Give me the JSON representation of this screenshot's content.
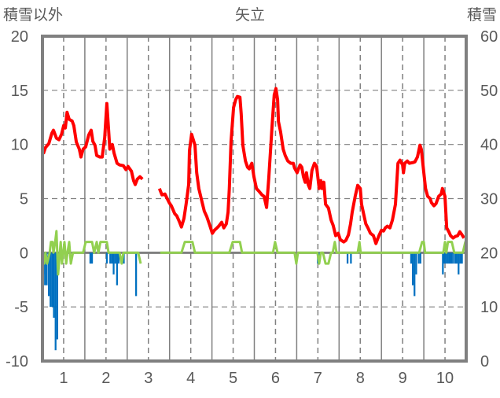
{
  "chart_data": {
    "type": "line",
    "title": "矢立",
    "ylabel_left": "積雪以外",
    "ylabel_right": "積雪",
    "xlabel": "",
    "xlim": [
      0.5,
      10.5
    ],
    "ylim_left": [
      -10,
      20
    ],
    "ylim_right": [
      0,
      60
    ],
    "xticks": [
      "1",
      "2",
      "3",
      "4",
      "5",
      "6",
      "7",
      "8",
      "9",
      "10"
    ],
    "yticks_left": [
      "20",
      "15",
      "10",
      "5",
      "0",
      "-5",
      "-10"
    ],
    "yticks_right": [
      "60",
      "50",
      "40",
      "30",
      "20",
      "10",
      "0"
    ],
    "grid": true,
    "colors": {
      "temperature": "#ff0000",
      "precip": "#0070c0",
      "wind": "#92d050",
      "snow": "#7030a0",
      "axis": "#808080"
    },
    "series": [
      {
        "name": "red-line",
        "axis": "left",
        "points": [
          [
            0.52,
            9.13
          ],
          [
            0.57,
            9.71
          ],
          [
            0.65,
            10.08
          ],
          [
            0.72,
            11.02
          ],
          [
            0.76,
            11.31
          ],
          [
            0.83,
            10.58
          ],
          [
            0.89,
            10.43
          ],
          [
            0.95,
            10.94
          ],
          [
            1.0,
            11.74
          ],
          [
            1.04,
            11.52
          ],
          [
            1.08,
            12.97
          ],
          [
            1.13,
            12.32
          ],
          [
            1.2,
            12.18
          ],
          [
            1.24,
            11.74
          ],
          [
            1.3,
            10.22
          ],
          [
            1.37,
            9.57
          ],
          [
            1.41,
            8.84
          ],
          [
            1.46,
            9.57
          ],
          [
            1.52,
            9.78
          ],
          [
            1.59,
            10.87
          ],
          [
            1.65,
            11.31
          ],
          [
            1.69,
            10.29
          ],
          [
            1.74,
            9.93
          ],
          [
            1.78,
            8.98
          ],
          [
            1.85,
            8.84
          ],
          [
            1.91,
            8.84
          ],
          [
            1.97,
            10.65
          ],
          [
            2.02,
            13.78
          ],
          [
            2.06,
            11.38
          ],
          [
            2.09,
            9.57
          ],
          [
            2.15,
            10.0
          ],
          [
            2.19,
            9.2
          ],
          [
            2.26,
            8.26
          ],
          [
            2.32,
            8.11
          ],
          [
            2.41,
            8.04
          ],
          [
            2.47,
            7.68
          ],
          [
            2.52,
            7.97
          ],
          [
            2.6,
            7.53
          ],
          [
            2.65,
            6.66
          ],
          [
            2.69,
            6.3
          ],
          [
            2.74,
            6.8
          ],
          [
            2.8,
            7.02
          ],
          [
            2.86,
            6.8
          ],
          null,
          [
            3.26,
            5.93
          ],
          [
            3.32,
            5.35
          ],
          [
            3.39,
            5.42
          ],
          [
            3.49,
            4.63
          ],
          [
            3.54,
            4.34
          ],
          [
            3.62,
            3.61
          ],
          [
            3.67,
            3.4
          ],
          [
            3.73,
            2.88
          ],
          [
            3.78,
            2.38
          ],
          [
            3.84,
            3.17
          ],
          [
            3.89,
            4.48
          ],
          [
            3.95,
            6.3
          ],
          [
            3.97,
            9.42
          ],
          [
            4.02,
            10.94
          ],
          [
            4.1,
            9.93
          ],
          [
            4.14,
            7.39
          ],
          [
            4.19,
            5.93
          ],
          [
            4.27,
            4.63
          ],
          [
            4.32,
            3.83
          ],
          [
            4.38,
            3.32
          ],
          [
            4.45,
            2.52
          ],
          [
            4.51,
            1.8
          ],
          [
            4.56,
            2.08
          ],
          [
            4.62,
            2.3
          ],
          [
            4.66,
            2.45
          ],
          [
            4.73,
            2.81
          ],
          [
            4.78,
            2.3
          ],
          [
            4.84,
            2.67
          ],
          [
            4.88,
            3.75
          ],
          [
            4.91,
            5.93
          ],
          [
            4.95,
            10.29
          ],
          [
            5.01,
            13.41
          ],
          [
            5.06,
            14.14
          ],
          [
            5.1,
            14.43
          ],
          [
            5.16,
            14.36
          ],
          [
            5.19,
            12.83
          ],
          [
            5.23,
            9.93
          ],
          [
            5.29,
            8.47
          ],
          [
            5.34,
            7.89
          ],
          [
            5.38,
            7.75
          ],
          [
            5.44,
            8.26
          ],
          [
            5.49,
            7.02
          ],
          [
            5.55,
            5.93
          ],
          [
            5.6,
            5.72
          ],
          [
            5.68,
            5.35
          ],
          [
            5.73,
            5.21
          ],
          [
            5.79,
            4.19
          ],
          [
            5.84,
            6.8
          ],
          [
            5.92,
            11.74
          ],
          [
            5.97,
            14.58
          ],
          [
            6.01,
            15.16
          ],
          [
            6.05,
            14.14
          ],
          [
            6.07,
            12.11
          ],
          [
            6.12,
            11.16
          ],
          [
            6.18,
            9.57
          ],
          [
            6.23,
            8.98
          ],
          [
            6.29,
            8.47
          ],
          [
            6.36,
            8.26
          ],
          [
            6.42,
            8.26
          ],
          [
            6.45,
            7.82
          ],
          [
            6.51,
            7.39
          ],
          [
            6.55,
            7.82
          ],
          [
            6.58,
            8.11
          ],
          [
            6.62,
            7.89
          ],
          [
            6.66,
            7.02
          ],
          [
            6.7,
            6.51
          ],
          [
            6.73,
            7.39
          ],
          [
            6.77,
            6.3
          ],
          [
            6.81,
            5.93
          ],
          [
            6.86,
            7.6
          ],
          [
            6.92,
            8.26
          ],
          [
            6.97,
            7.97
          ],
          [
            7.03,
            5.93
          ],
          [
            7.07,
            6.66
          ],
          [
            7.1,
            5.93
          ],
          [
            7.14,
            6.51
          ],
          [
            7.18,
            4.48
          ],
          [
            7.25,
            4.12
          ],
          [
            7.31,
            3.03
          ],
          [
            7.36,
            2.52
          ],
          [
            7.42,
            1.58
          ],
          [
            7.48,
            1.8
          ],
          [
            7.53,
            1.21
          ],
          [
            7.61,
            1.0
          ],
          [
            7.66,
            1.14
          ],
          [
            7.72,
            1.65
          ],
          [
            7.77,
            2.67
          ],
          [
            7.81,
            3.75
          ],
          [
            7.88,
            5.21
          ],
          [
            7.94,
            6.22
          ],
          [
            8.0,
            5.93
          ],
          [
            8.03,
            4.48
          ],
          [
            8.09,
            3.4
          ],
          [
            8.13,
            2.67
          ],
          [
            8.18,
            2.3
          ],
          [
            8.24,
            1.8
          ],
          [
            8.31,
            1.58
          ],
          [
            8.37,
            0.85
          ],
          [
            8.44,
            1.58
          ],
          [
            8.5,
            2.08
          ],
          [
            8.55,
            2.01
          ],
          [
            8.59,
            2.3
          ],
          [
            8.64,
            2.45
          ],
          [
            8.7,
            2.3
          ],
          [
            8.76,
            3.03
          ],
          [
            8.83,
            4.48
          ],
          [
            8.89,
            8.26
          ],
          [
            8.94,
            8.55
          ],
          [
            9.0,
            8.11
          ],
          [
            9.02,
            7.39
          ],
          [
            9.05,
            8.26
          ],
          [
            9.11,
            8.47
          ],
          [
            9.16,
            8.26
          ],
          [
            9.24,
            8.33
          ],
          [
            9.29,
            8.4
          ],
          [
            9.35,
            8.84
          ],
          [
            9.41,
            9.93
          ],
          [
            9.44,
            9.57
          ],
          [
            9.5,
            7.39
          ],
          [
            9.54,
            5.93
          ],
          [
            9.59,
            5.21
          ],
          [
            9.65,
            4.99
          ],
          [
            9.68,
            4.63
          ],
          [
            9.74,
            4.34
          ],
          [
            9.79,
            4.55
          ],
          [
            9.85,
            5.21
          ],
          [
            9.91,
            5.42
          ],
          [
            9.94,
            5.93
          ],
          [
            10.0,
            5.21
          ],
          [
            10.04,
            2.3
          ],
          [
            10.09,
            1.94
          ],
          [
            10.13,
            1.58
          ],
          [
            10.19,
            1.36
          ],
          [
            10.24,
            1.5
          ],
          [
            10.3,
            1.58
          ],
          [
            10.35,
            1.94
          ],
          [
            10.39,
            1.72
          ],
          [
            10.45,
            1.36
          ]
        ]
      },
      {
        "name": "green-line",
        "axis": "left",
        "points": [
          [
            0.5,
            0
          ],
          [
            0.54,
            -1
          ],
          [
            0.57,
            0
          ],
          [
            0.61,
            -1
          ],
          [
            0.67,
            0
          ],
          [
            0.7,
            1
          ],
          [
            0.74,
            1
          ],
          [
            0.76,
            0
          ],
          [
            0.8,
            1
          ],
          [
            0.83,
            2
          ],
          [
            0.87,
            -2
          ],
          [
            0.93,
            1
          ],
          [
            0.96,
            -1
          ],
          [
            1.02,
            1
          ],
          [
            1.06,
            -1
          ],
          [
            1.09,
            0
          ],
          [
            1.13,
            1
          ],
          [
            1.17,
            -1
          ],
          [
            1.22,
            0
          ],
          [
            1.46,
            0
          ],
          [
            1.52,
            1
          ],
          [
            1.67,
            1
          ],
          [
            1.72,
            0
          ],
          [
            1.78,
            1
          ],
          [
            1.82,
            0
          ],
          [
            1.87,
            1
          ],
          [
            2.02,
            1
          ],
          [
            2.06,
            0
          ],
          [
            2.32,
            0
          ],
          [
            2.37,
            -1
          ],
          [
            2.41,
            0
          ],
          [
            2.76,
            0
          ],
          [
            2.82,
            -1
          ],
          null,
          [
            3.28,
            0
          ],
          [
            3.78,
            0
          ],
          [
            3.86,
            1
          ],
          [
            4.04,
            1
          ],
          [
            4.1,
            0
          ],
          [
            4.91,
            0
          ],
          [
            4.99,
            1
          ],
          [
            5.16,
            1
          ],
          [
            5.21,
            0
          ],
          [
            5.94,
            0
          ],
          [
            5.99,
            1
          ],
          [
            6.05,
            0
          ],
          [
            6.45,
            0
          ],
          [
            6.49,
            -1
          ],
          [
            6.53,
            0
          ],
          [
            6.99,
            0
          ],
          [
            7.03,
            -1
          ],
          [
            7.07,
            0
          ],
          [
            7.12,
            0
          ],
          [
            7.18,
            -1
          ],
          [
            7.25,
            -1
          ],
          [
            7.31,
            0
          ],
          [
            7.35,
            0
          ],
          [
            7.4,
            1
          ],
          [
            7.44,
            0
          ],
          [
            7.94,
            0
          ],
          [
            7.98,
            1
          ],
          [
            8.01,
            0
          ],
          [
            9.39,
            0
          ],
          [
            9.46,
            1
          ],
          [
            9.5,
            1
          ],
          [
            9.53,
            0
          ],
          [
            9.96,
            0
          ],
          [
            10.0,
            1
          ],
          [
            10.03,
            0
          ],
          [
            10.07,
            1
          ],
          [
            10.16,
            1
          ],
          [
            10.22,
            0
          ],
          [
            10.42,
            0
          ],
          [
            10.48,
            1
          ],
          [
            10.5,
            0
          ]
        ]
      },
      {
        "name": "blue-bars",
        "axis": "left",
        "type": "bar",
        "points": [
          [
            0.52,
            -2
          ],
          [
            0.56,
            -3
          ],
          [
            0.6,
            -3
          ],
          [
            0.65,
            -4
          ],
          [
            0.69,
            -5
          ],
          [
            0.73,
            -5
          ],
          [
            0.77,
            -6
          ],
          [
            0.81,
            -9
          ],
          [
            0.85,
            -8
          ],
          [
            1.63,
            -1
          ],
          [
            1.67,
            -1
          ],
          [
            2.02,
            -1
          ],
          [
            2.1,
            -1
          ],
          [
            2.14,
            -1
          ],
          [
            2.18,
            -2
          ],
          [
            2.22,
            -1
          ],
          [
            2.26,
            -3
          ],
          [
            2.3,
            -1
          ],
          [
            2.42,
            -1
          ],
          [
            2.71,
            -4
          ],
          [
            7.0,
            -1
          ],
          [
            7.03,
            -1
          ],
          [
            7.7,
            -1
          ],
          [
            7.78,
            -1
          ],
          [
            9.2,
            -1
          ],
          [
            9.24,
            -3
          ],
          [
            9.28,
            -4
          ],
          [
            9.32,
            -2
          ],
          [
            9.38,
            -1
          ],
          [
            9.42,
            -1
          ],
          [
            9.95,
            -2
          ],
          [
            9.99,
            -1
          ],
          [
            10.03,
            -1
          ],
          [
            10.07,
            -1
          ],
          [
            10.11,
            -1
          ],
          [
            10.15,
            -1
          ],
          [
            10.19,
            -1
          ],
          [
            10.24,
            -1
          ],
          [
            10.28,
            -1
          ],
          [
            10.32,
            -2
          ],
          [
            10.36,
            -1
          ],
          [
            10.4,
            -1
          ]
        ]
      },
      {
        "name": "purple-line",
        "axis": "right",
        "points": [
          [
            0.5,
            0
          ],
          [
            2.83,
            0
          ],
          null,
          [
            3.26,
            0
          ],
          [
            10.5,
            0
          ]
        ]
      }
    ]
  }
}
